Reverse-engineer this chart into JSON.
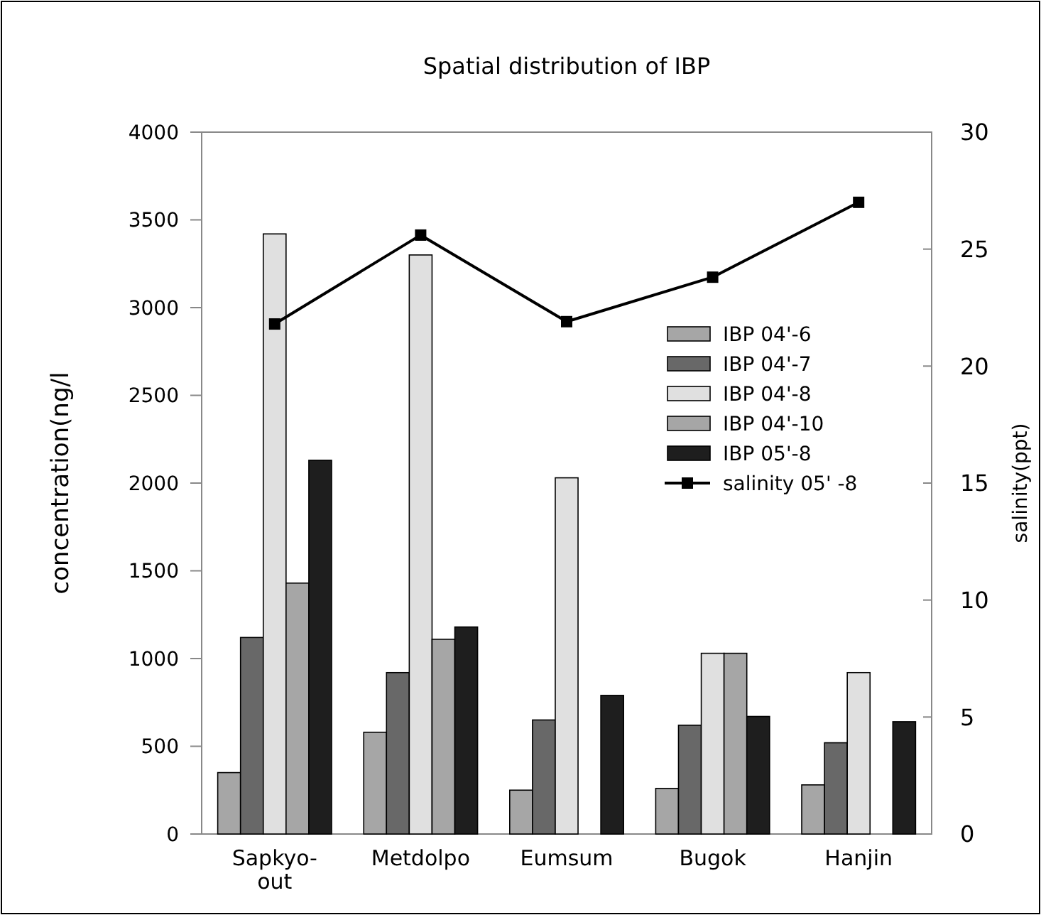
{
  "chart_data": {
    "type": "bar",
    "title": "Spatial distribution of IBP",
    "ylabel": "concentration(ng/l",
    "y2label": "salinity(ppt)",
    "categories": [
      "Sapkyo-out",
      "Metdolpo",
      "Eumsum",
      "Bugok",
      "Hanjin"
    ],
    "series": [
      {
        "name": "IBP 04'-6",
        "color": "#a6a6a6",
        "values": [
          350,
          580,
          250,
          260,
          280
        ]
      },
      {
        "name": "IBP 04'-7",
        "color": "#686868",
        "values": [
          1120,
          920,
          650,
          620,
          520
        ]
      },
      {
        "name": "IBP 04'-8",
        "color": "#e0e0e0",
        "values": [
          3420,
          3300,
          2030,
          1030,
          920
        ]
      },
      {
        "name": "IBP 04'-10",
        "color": "#a6a6a6",
        "values": [
          1430,
          1110,
          null,
          1030,
          null
        ]
      },
      {
        "name": "IBP 05'-8",
        "color": "#1e1e1e",
        "values": [
          2130,
          1180,
          790,
          670,
          640
        ]
      },
      {
        "name": "salinity 05' -8",
        "type": "line",
        "axis": "y2",
        "color": "#000000",
        "values": [
          21.8,
          25.6,
          21.9,
          23.8,
          27.0
        ]
      }
    ],
    "ylim": [
      0,
      4000
    ],
    "yticks": [
      0,
      500,
      1000,
      1500,
      2000,
      2500,
      3000,
      3500,
      4000
    ],
    "y2lim": [
      0,
      30
    ],
    "y2ticks": [
      0,
      5,
      10,
      15,
      20,
      25,
      30
    ],
    "legend": "right",
    "marker": "square",
    "line_style": "solid",
    "grid": false
  }
}
